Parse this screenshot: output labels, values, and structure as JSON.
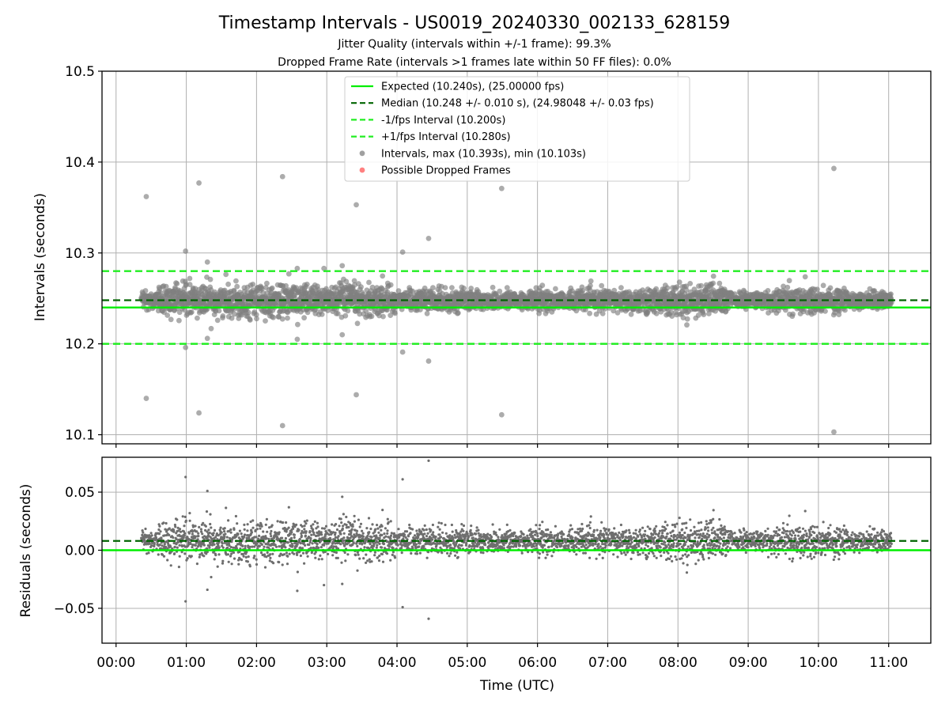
{
  "figure": {
    "title": "Timestamp Intervals - US0019_20240330_002133_628159",
    "subtitle1": "Jitter Quality (intervals within +/-1 frame): 99.3%",
    "subtitle2": "Dropped Frame Rate (intervals >1 frames late within 50 FF files): 0.0%"
  },
  "colors": {
    "expected": "#00ee00",
    "median": "#006400",
    "interval_bounds": "#22ee22",
    "points_top": "#808080",
    "points_bottom": "#6e6e6e",
    "dropped": "#ff5555",
    "grid": "#b0b0b0"
  },
  "chart_data": [
    {
      "type": "scatter",
      "ylabel": "Intervals (seconds)",
      "xlim": [
        -0.2,
        11.6
      ],
      "ylim": [
        10.09,
        10.5
      ],
      "yticks": [
        "10.1",
        "10.2",
        "10.3",
        "10.4",
        "10.5"
      ],
      "grid": true,
      "legend_placement": "top-center",
      "legend": [
        "Expected (10.240s), (25.00000 fps)",
        "Median (10.248 +/- 0.010 s), (24.98048 +/- 0.03 fps)",
        "-1/fps Interval (10.200s)",
        "+1/fps Interval (10.280s)",
        "Intervals, max (10.393s), min (10.103s)",
        "Possible Dropped Frames"
      ],
      "lines": {
        "expected": 10.24,
        "median": 10.248,
        "minus_one_fps": 10.2,
        "plus_one_fps": 10.28
      },
      "x_range_hours": [
        0.36,
        11.04
      ],
      "interval_median": 10.248,
      "interval_max": 10.393,
      "interval_min": 10.103,
      "outliers": [
        [
          0.43,
          10.362
        ],
        [
          0.43,
          10.14
        ],
        [
          0.99,
          10.302
        ],
        [
          0.99,
          10.196
        ],
        [
          1.18,
          10.377
        ],
        [
          1.18,
          10.124
        ],
        [
          1.3,
          10.29
        ],
        [
          1.3,
          10.206
        ],
        [
          2.37,
          10.384
        ],
        [
          2.37,
          10.11
        ],
        [
          2.58,
          10.283
        ],
        [
          2.58,
          10.205
        ],
        [
          2.96,
          10.283
        ],
        [
          3.22,
          10.286
        ],
        [
          3.22,
          10.21
        ],
        [
          3.42,
          10.353
        ],
        [
          3.42,
          10.144
        ],
        [
          4.08,
          10.301
        ],
        [
          4.08,
          10.191
        ],
        [
          4.45,
          10.316
        ],
        [
          4.45,
          10.181
        ],
        [
          5.49,
          10.371
        ],
        [
          5.49,
          10.122
        ],
        [
          10.22,
          10.393
        ],
        [
          10.22,
          10.103
        ]
      ],
      "dropped_frames": []
    },
    {
      "type": "scatter",
      "xlabel": "Time (UTC)",
      "ylabel": "Residuals (seconds)",
      "xlim": [
        -0.2,
        11.6
      ],
      "ylim": [
        -0.08,
        0.08
      ],
      "yticks": [
        "−0.05",
        "0.00",
        "0.05"
      ],
      "xticks": [
        "00:00",
        "01:00",
        "02:00",
        "03:00",
        "04:00",
        "05:00",
        "06:00",
        "07:00",
        "08:00",
        "09:00",
        "10:00",
        "11:00"
      ],
      "grid": true,
      "lines": {
        "zero": 0.0,
        "median": 0.008
      },
      "outliers": [
        [
          0.99,
          0.063
        ],
        [
          0.99,
          -0.044
        ],
        [
          1.3,
          0.051
        ],
        [
          3.22,
          0.046
        ],
        [
          4.08,
          0.061
        ],
        [
          4.08,
          -0.049
        ],
        [
          4.45,
          0.077
        ],
        [
          4.45,
          -0.059
        ],
        [
          1.3,
          -0.034
        ],
        [
          2.58,
          -0.035
        ],
        [
          3.22,
          -0.029
        ],
        [
          2.96,
          -0.03
        ]
      ]
    }
  ]
}
